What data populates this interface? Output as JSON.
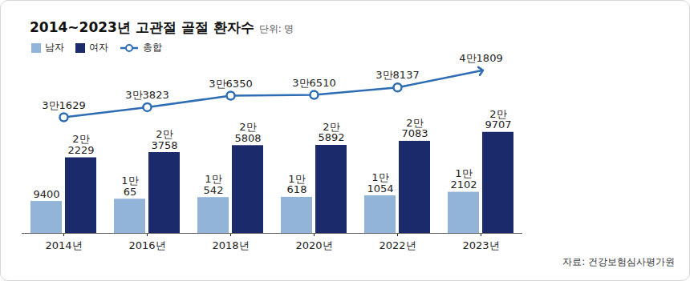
{
  "chart_data": {
    "type": "bar",
    "title": "2014~2023년 고관절 골절 환자수",
    "subtitle": "단위: 명",
    "source": "자료: 건강보험심사평가원",
    "categories": [
      "2014년",
      "2016년",
      "2018년",
      "2020년",
      "2022년",
      "2023년"
    ],
    "series": [
      {
        "name": "남자",
        "color": "#92b4d8",
        "values": [
          9400,
          10065,
          10542,
          10618,
          11054,
          12102
        ],
        "value_labels": [
          "9400",
          "1만\n65",
          "1만\n542",
          "1만\n618",
          "1만\n1054",
          "1만\n2102"
        ]
      },
      {
        "name": "여자",
        "color": "#1b2a6b",
        "values": [
          22229,
          23758,
          25808,
          25892,
          27083,
          29707
        ],
        "value_labels": [
          "2만\n2229",
          "2만\n3758",
          "2만\n5808",
          "2만\n5892",
          "2만\n7083",
          "2만\n9707"
        ]
      },
      {
        "name": "총합",
        "type": "line",
        "axis": "y2",
        "color": "#2e6db4",
        "marker": "circle",
        "values": [
          31629,
          33823,
          36350,
          36510,
          38137,
          41809
        ],
        "value_labels": [
          "3만1629",
          "3만3823",
          "3만6350",
          "3만6510",
          "3만8137",
          "4만1809"
        ]
      }
    ],
    "ylim": [
      0,
      40000
    ],
    "y2lim": [
      29000,
      46500
    ],
    "tick_labels": "x",
    "legend": "top-left",
    "data_labels": true,
    "grid": false
  }
}
